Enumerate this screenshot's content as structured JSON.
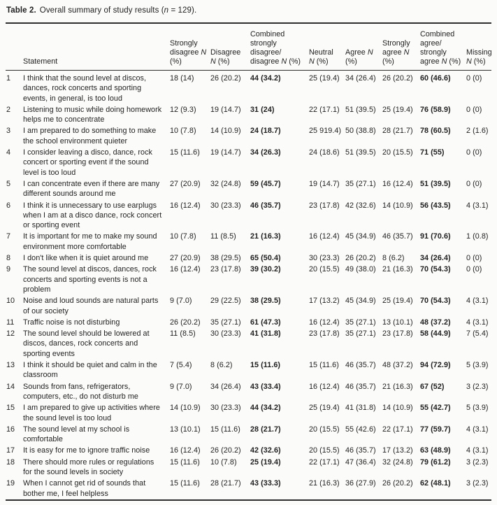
{
  "page": {
    "background": "#fbfbfa",
    "text_color": "#1f1f1f",
    "rule_color": "#2e2e2e"
  },
  "table": {
    "caption": {
      "label": "Table 2.",
      "text_before_n": "Overall summary of study results (",
      "n": "n",
      "text_after_n": " = 129)."
    },
    "columns": [
      {
        "id": "row-number",
        "lines": [
          ""
        ]
      },
      {
        "id": "statement",
        "lines": [
          "Statement"
        ]
      },
      {
        "id": "strongly-disagree",
        "lines": [
          "Strongly",
          "disagree N",
          "(%)"
        ]
      },
      {
        "id": "disagree",
        "lines": [
          "Disagree",
          "N (%)"
        ]
      },
      {
        "id": "combined-strongly-disagree-disagree",
        "lines": [
          "Combined",
          "strongly",
          "disagree/",
          "disagree N (%)"
        ]
      },
      {
        "id": "neutral",
        "lines": [
          "Neutral",
          "N (%)"
        ]
      },
      {
        "id": "agree",
        "lines": [
          "Agree N",
          "(%)"
        ]
      },
      {
        "id": "strongly-agree",
        "lines": [
          "Strongly",
          "agree N",
          "(%)"
        ]
      },
      {
        "id": "combined-agree-strongly-agree",
        "lines": [
          "Combined",
          "agree/",
          "strongly",
          "agree N (%)"
        ]
      },
      {
        "id": "missing",
        "lines": [
          "Missing",
          "N (%)"
        ]
      }
    ],
    "bold_value_columns": [
      2,
      6
    ],
    "rows": [
      {
        "num": "1",
        "statement": "I think that the sound level at discos, dances, rock concerts and sporting events, in general, is too loud",
        "values": [
          "18 (14)",
          "26 (20.2)",
          "44 (34.2)",
          "25 (19.4)",
          "34 (26.4)",
          "26 (20.2)",
          "60 (46.6)",
          "0 (0)"
        ]
      },
      {
        "num": "2",
        "statement": "Listening to music while doing homework helps me to concentrate",
        "values": [
          "12 (9.3)",
          "19 (14.7)",
          "31 (24)",
          "22 (17.1)",
          "51 (39.5)",
          "25 (19.4)",
          "76 (58.9)",
          "0 (0)"
        ]
      },
      {
        "num": "3",
        "statement": "I am prepared to do something to make the school environment quieter",
        "values": [
          "10 (7.8)",
          "14 (10.9)",
          "24 (18.7)",
          "25 919.4)",
          "50 (38.8)",
          "28 (21.7)",
          "78 (60.5)",
          "2 (1.6)"
        ]
      },
      {
        "num": "4",
        "statement": "I consider leaving a disco, dance, rock concert or sporting event if the sound level is too loud",
        "values": [
          "15 (11.6)",
          "19 (14.7)",
          "34 (26.3)",
          "24 (18.6)",
          "51 (39.5)",
          "20 (15.5)",
          "71 (55)",
          "0 (0)"
        ]
      },
      {
        "num": "5",
        "statement": "I can concentrate even if there are many different sounds around me",
        "values": [
          "27 (20.9)",
          "32 (24.8)",
          "59 (45.7)",
          "19 (14.7)",
          "35 (27.1)",
          "16 (12.4)",
          "51 (39.5)",
          "0 (0)"
        ]
      },
      {
        "num": "6",
        "statement": "I think it is unnecessary to use earplugs when I am at a disco dance, rock concert or sporting event",
        "values": [
          "16 (12.4)",
          "30 (23.3)",
          "46 (35.7)",
          "23 (17.8)",
          "42 (32.6)",
          "14 (10.9)",
          "56 (43.5)",
          "4 (3.1)"
        ]
      },
      {
        "num": "7",
        "statement": "It is important for me to make my sound environment more comfortable",
        "values": [
          "10 (7.8)",
          "11 (8.5)",
          "21 (16.3)",
          "16 (12.4)",
          "45 (34.9)",
          "46 (35.7)",
          "91 (70.6)",
          "1 (0.8)"
        ]
      },
      {
        "num": "8",
        "statement": "I don't like when it is quiet around me",
        "values": [
          "27 (20.9)",
          "38 (29.5)",
          "65 (50.4)",
          "30 (23.3)",
          "26 (20.2)",
          "8 (6.2)",
          "34 (26.4)",
          "0 (0)"
        ]
      },
      {
        "num": "9",
        "statement": "The sound level at discos, dances, rock concerts and sporting events is not a problem",
        "values": [
          "16 (12.4)",
          "23 (17.8)",
          "39 (30.2)",
          "20 (15.5)",
          "49 (38.0)",
          "21 (16.3)",
          "70 (54.3)",
          "0 (0)"
        ]
      },
      {
        "num": "10",
        "statement": "Noise and loud sounds are natural parts of our society",
        "values": [
          "9 (7.0)",
          "29 (22.5)",
          "38 (29.5)",
          "17 (13.2)",
          "45 (34.9)",
          "25 (19.4)",
          "70 (54.3)",
          "4 (3.1)"
        ]
      },
      {
        "num": "11",
        "statement": "Traffic noise is not disturbing",
        "values": [
          "26 (20.2)",
          "35 (27.1)",
          "61 (47.3)",
          "16 (12.4)",
          "35 (27.1)",
          "13 (10.1)",
          "48 (37.2)",
          "4 (3.1)"
        ]
      },
      {
        "num": "12",
        "statement": "The sound level should be lowered at discos, dances, rock concerts and sporting events",
        "values": [
          "11 (8.5)",
          "30 (23.3)",
          "41 (31.8)",
          "23 (17.8)",
          "35 (27.1)",
          "23 (17.8)",
          "58 (44.9)",
          "7 (5.4)"
        ]
      },
      {
        "num": "13",
        "statement": "I think it should be quiet and calm in the classroom",
        "values": [
          "7 (5.4)",
          "8 (6.2)",
          "15 (11.6)",
          "15 (11.6)",
          "46 (35.7)",
          "48 (37.2)",
          "94 (72.9)",
          "5 (3.9)"
        ]
      },
      {
        "num": "14",
        "statement": "Sounds from fans, refrigerators, computers, etc., do not disturb me",
        "values": [
          "9 (7.0)",
          "34 (26.4)",
          "43 (33.4)",
          "16 (12.4)",
          "46 (35.7)",
          "21 (16.3)",
          "67 (52)",
          "3 (2.3)"
        ]
      },
      {
        "num": "15",
        "statement": "I am prepared to give up activities where the sound level is too loud",
        "values": [
          "14 (10.9)",
          "30 (23.3)",
          "44 (34.2)",
          "25 (19.4)",
          "41 (31.8)",
          "14 (10.9)",
          "55 (42.7)",
          "5 (3.9)"
        ]
      },
      {
        "num": "16",
        "statement": "The sound level at my school is comfortable",
        "values": [
          "13 (10.1)",
          "15 (11.6)",
          "28 (21.7)",
          "20 (15.5)",
          "55 (42.6)",
          "22 (17.1)",
          "77 (59.7)",
          "4 (3.1)"
        ]
      },
      {
        "num": "17",
        "statement": "It is easy for me to ignore traffic noise",
        "values": [
          "16 (12.4)",
          "26 (20.2)",
          "42 (32.6)",
          "20 (15.5)",
          "46 (35.7)",
          "17 (13.2)",
          "63 (48.9)",
          "4 (3.1)"
        ]
      },
      {
        "num": "18",
        "statement": "There should more rules or regulations for the sound levels in society",
        "values": [
          "15 (11.6)",
          "10 (7.8)",
          "25 (19.4)",
          "22 (17.1)",
          "47 (36.4)",
          "32 (24.8)",
          "79 (61.2)",
          "3 (2.3)"
        ]
      },
      {
        "num": "19",
        "statement": "When I cannot get rid of sounds that bother me, I feel helpless",
        "values": [
          "15 (11.6)",
          "28 (21.7)",
          "43 (33.3)",
          "21 (16.3)",
          "36 (27.9)",
          "26 (20.2)",
          "62 (48.1)",
          "3 (2.3)"
        ]
      }
    ]
  }
}
